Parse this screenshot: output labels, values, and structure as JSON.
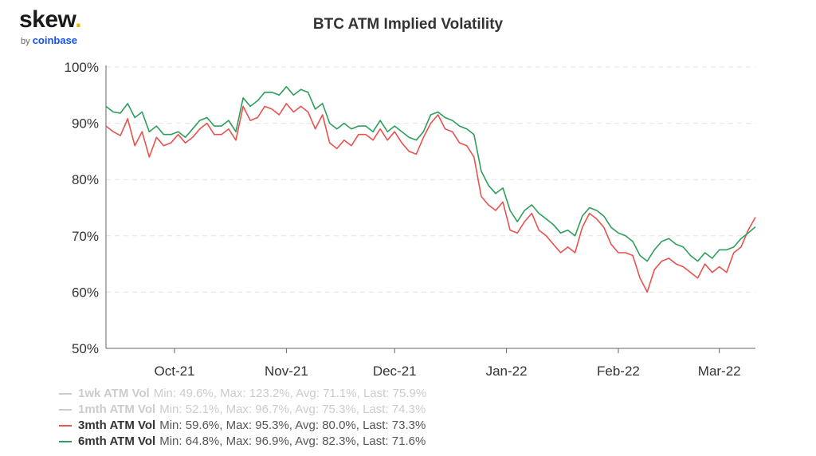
{
  "logo": {
    "word": "skew",
    "dot": ".",
    "by": "by",
    "brand": "coinbase"
  },
  "colors": {
    "s1wk": "#cccccc",
    "s1mth": "#cccccc",
    "s3mth": "#e8524f",
    "s6mth": "#2e9e5b",
    "grid": "#e3e3e3",
    "axis": "#666666"
  },
  "chart_data": {
    "type": "line",
    "title": "BTC ATM Implied Volatility",
    "xlabel": "",
    "ylabel": "",
    "ylim": [
      50,
      100
    ],
    "yticks": [
      50,
      60,
      70,
      80,
      90,
      100
    ],
    "ytick_labels": [
      "50%",
      "60%",
      "70%",
      "80%",
      "90%",
      "100%"
    ],
    "xlim": [
      "2021-09-12",
      "2022-03-11"
    ],
    "xticks": [
      "2021-10-01",
      "2021-11-01",
      "2021-12-01",
      "2022-01-01",
      "2022-02-01",
      "2022-03-01"
    ],
    "xtick_labels": [
      "Oct-21",
      "Nov-21",
      "Dec-21",
      "Jan-22",
      "Feb-22",
      "Mar-22"
    ],
    "grid": true,
    "legend_position": "bottom-left",
    "series": [
      {
        "name": "1wk ATM Vol",
        "stats": "Min: 49.6%, Max: 123.2%, Avg: 71.1%, Last: 75.9%",
        "visible": false,
        "x": [],
        "values": []
      },
      {
        "name": "1mth ATM Vol",
        "stats": "Min: 52.1%, Max: 96.7%, Avg: 75.3%, Last: 74.3%",
        "visible": false,
        "x": [],
        "values": []
      },
      {
        "name": "3mth ATM Vol",
        "stats": "Min: 59.6%, Max: 95.3%, Avg: 80.0%, Last: 73.3%",
        "visible": true,
        "x": [
          "2021-09-12",
          "2021-09-14",
          "2021-09-16",
          "2021-09-18",
          "2021-09-20",
          "2021-09-22",
          "2021-09-24",
          "2021-09-26",
          "2021-09-28",
          "2021-09-30",
          "2021-10-02",
          "2021-10-04",
          "2021-10-06",
          "2021-10-08",
          "2021-10-10",
          "2021-10-12",
          "2021-10-14",
          "2021-10-16",
          "2021-10-18",
          "2021-10-20",
          "2021-10-22",
          "2021-10-24",
          "2021-10-26",
          "2021-10-28",
          "2021-10-30",
          "2021-11-01",
          "2021-11-03",
          "2021-11-05",
          "2021-11-07",
          "2021-11-09",
          "2021-11-11",
          "2021-11-13",
          "2021-11-15",
          "2021-11-17",
          "2021-11-19",
          "2021-11-21",
          "2021-11-23",
          "2021-11-25",
          "2021-11-27",
          "2021-11-29",
          "2021-12-01",
          "2021-12-03",
          "2021-12-05",
          "2021-12-07",
          "2021-12-09",
          "2021-12-11",
          "2021-12-13",
          "2021-12-15",
          "2021-12-17",
          "2021-12-19",
          "2021-12-21",
          "2021-12-23",
          "2021-12-25",
          "2021-12-27",
          "2021-12-29",
          "2021-12-31",
          "2022-01-02",
          "2022-01-04",
          "2022-01-06",
          "2022-01-08",
          "2022-01-10",
          "2022-01-12",
          "2022-01-14",
          "2022-01-16",
          "2022-01-18",
          "2022-01-20",
          "2022-01-22",
          "2022-01-24",
          "2022-01-26",
          "2022-01-28",
          "2022-01-30",
          "2022-02-01",
          "2022-02-03",
          "2022-02-05",
          "2022-02-07",
          "2022-02-09",
          "2022-02-11",
          "2022-02-13",
          "2022-02-15",
          "2022-02-17",
          "2022-02-19",
          "2022-02-21",
          "2022-02-23",
          "2022-02-25",
          "2022-02-27",
          "2022-03-01",
          "2022-03-03",
          "2022-03-05",
          "2022-03-07",
          "2022-03-09",
          "2022-03-11"
        ],
        "values": [
          89.5,
          88.5,
          87.8,
          90.8,
          86.0,
          88.5,
          84.0,
          87.5,
          86.0,
          86.5,
          88.0,
          86.5,
          87.5,
          89.0,
          90.0,
          88.0,
          88.0,
          89.0,
          87.0,
          93.0,
          90.5,
          91.0,
          93.0,
          92.5,
          91.5,
          93.5,
          92.0,
          93.0,
          92.0,
          89.0,
          91.5,
          86.5,
          85.5,
          87.0,
          86.0,
          88.0,
          88.0,
          87.0,
          89.0,
          87.0,
          88.5,
          86.5,
          85.0,
          84.5,
          87.5,
          90.0,
          91.5,
          89.0,
          88.5,
          86.5,
          86.0,
          84.0,
          77.0,
          75.5,
          74.5,
          76.0,
          71.0,
          70.5,
          72.5,
          74.0,
          71.0,
          70.0,
          68.5,
          67.0,
          68.0,
          67.0,
          71.5,
          74.0,
          73.0,
          71.5,
          68.5,
          67.0,
          67.0,
          66.5,
          62.5,
          60.0,
          64.0,
          65.5,
          66.0,
          65.0,
          64.5,
          63.5,
          62.5,
          65.0,
          63.5,
          64.5,
          63.5,
          67.0,
          68.0,
          71.0,
          73.3
        ]
      },
      {
        "name": "6mth ATM Vol",
        "stats": "Min: 64.8%, Max: 96.9%, Avg: 82.3%, Last: 71.6%",
        "visible": true,
        "x": [
          "2021-09-12",
          "2021-09-14",
          "2021-09-16",
          "2021-09-18",
          "2021-09-20",
          "2021-09-22",
          "2021-09-24",
          "2021-09-26",
          "2021-09-28",
          "2021-09-30",
          "2021-10-02",
          "2021-10-04",
          "2021-10-06",
          "2021-10-08",
          "2021-10-10",
          "2021-10-12",
          "2021-10-14",
          "2021-10-16",
          "2021-10-18",
          "2021-10-20",
          "2021-10-22",
          "2021-10-24",
          "2021-10-26",
          "2021-10-28",
          "2021-10-30",
          "2021-11-01",
          "2021-11-03",
          "2021-11-05",
          "2021-11-07",
          "2021-11-09",
          "2021-11-11",
          "2021-11-13",
          "2021-11-15",
          "2021-11-17",
          "2021-11-19",
          "2021-11-21",
          "2021-11-23",
          "2021-11-25",
          "2021-11-27",
          "2021-11-29",
          "2021-12-01",
          "2021-12-03",
          "2021-12-05",
          "2021-12-07",
          "2021-12-09",
          "2021-12-11",
          "2021-12-13",
          "2021-12-15",
          "2021-12-17",
          "2021-12-19",
          "2021-12-21",
          "2021-12-23",
          "2021-12-25",
          "2021-12-27",
          "2021-12-29",
          "2021-12-31",
          "2022-01-02",
          "2022-01-04",
          "2022-01-06",
          "2022-01-08",
          "2022-01-10",
          "2022-01-12",
          "2022-01-14",
          "2022-01-16",
          "2022-01-18",
          "2022-01-20",
          "2022-01-22",
          "2022-01-24",
          "2022-01-26",
          "2022-01-28",
          "2022-01-30",
          "2022-02-01",
          "2022-02-03",
          "2022-02-05",
          "2022-02-07",
          "2022-02-09",
          "2022-02-11",
          "2022-02-13",
          "2022-02-15",
          "2022-02-17",
          "2022-02-19",
          "2022-02-21",
          "2022-02-23",
          "2022-02-25",
          "2022-02-27",
          "2022-03-01",
          "2022-03-03",
          "2022-03-05",
          "2022-03-07",
          "2022-03-09",
          "2022-03-11"
        ],
        "values": [
          93.0,
          92.0,
          91.8,
          93.5,
          91.0,
          92.0,
          88.5,
          89.5,
          88.0,
          88.0,
          88.5,
          87.5,
          89.0,
          90.5,
          91.0,
          89.5,
          89.5,
          90.5,
          88.5,
          94.5,
          93.0,
          94.0,
          95.5,
          95.5,
          95.0,
          96.5,
          95.0,
          96.0,
          95.5,
          92.5,
          93.5,
          90.0,
          89.0,
          90.0,
          89.0,
          89.5,
          89.5,
          88.5,
          90.5,
          88.5,
          89.5,
          88.5,
          87.5,
          87.0,
          88.5,
          91.5,
          92.0,
          91.0,
          90.5,
          89.5,
          89.0,
          88.0,
          81.5,
          79.0,
          77.5,
          78.5,
          74.5,
          72.5,
          74.5,
          75.5,
          74.0,
          73.0,
          72.0,
          70.5,
          71.0,
          70.0,
          73.5,
          75.0,
          74.5,
          73.5,
          71.5,
          70.5,
          70.0,
          69.0,
          66.5,
          65.5,
          67.5,
          69.0,
          69.5,
          68.5,
          68.0,
          66.5,
          65.5,
          67.0,
          66.0,
          67.5,
          67.5,
          68.0,
          69.5,
          70.5,
          71.6
        ]
      }
    ]
  }
}
